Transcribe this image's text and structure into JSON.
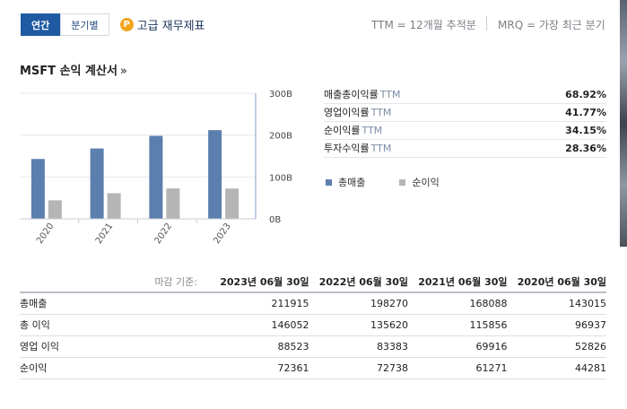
{
  "tabs": {
    "annual": "연간",
    "quarterly": "분기별"
  },
  "premium_label": "고급 재무제표",
  "premium_icon_letter": "P",
  "legend_ttm": "TTM = 12개월 추적분",
  "legend_mrq": "MRQ = 가장 최근 분기",
  "section_title": "MSFT 손익 계산서",
  "section_chevron": "»",
  "ratios": [
    {
      "label": "매출총이익률",
      "ttm": "TTM",
      "value": "68.92%"
    },
    {
      "label": "영업이익률",
      "ttm": "TTM",
      "value": "41.77%"
    },
    {
      "label": "순이익률",
      "ttm": "TTM",
      "value": "34.15%"
    },
    {
      "label": "투자수익률",
      "ttm": "TTM",
      "value": "28.36%"
    }
  ],
  "series_legend": [
    {
      "name": "총매출",
      "color": "#5b7fae"
    },
    {
      "name": "순이익",
      "color": "#b5b5b5"
    }
  ],
  "chart_data": {
    "type": "bar",
    "categories": [
      "2020",
      "2021",
      "2022",
      "2023"
    ],
    "series": [
      {
        "name": "총매출",
        "color": "#5b7fae",
        "values": [
          143015,
          168088,
          198270,
          211915
        ]
      },
      {
        "name": "순이익",
        "color": "#b5b5b5",
        "values": [
          44281,
          61271,
          72738,
          72361
        ]
      }
    ],
    "ylim": [
      0,
      300000
    ],
    "yticks": [
      "0B",
      "100B",
      "200B",
      "300B"
    ],
    "ytick_values": [
      0,
      100000,
      200000,
      300000
    ],
    "grid": true
  },
  "table": {
    "basis_label": "마감 기준:",
    "columns": [
      "2023년 06월 30일",
      "2022년 06월 30일",
      "2021년 06월 30일",
      "2020년 06월 30일"
    ],
    "rows": [
      {
        "label": "총매출",
        "values": [
          "211915",
          "198270",
          "168088",
          "143015"
        ]
      },
      {
        "label": "총 이익",
        "values": [
          "146052",
          "135620",
          "115856",
          "96937"
        ]
      },
      {
        "label": "영업 이익",
        "values": [
          "88523",
          "83383",
          "69916",
          "52826"
        ]
      },
      {
        "label": "순이익",
        "values": [
          "72361",
          "72738",
          "61271",
          "44281"
        ]
      }
    ]
  }
}
